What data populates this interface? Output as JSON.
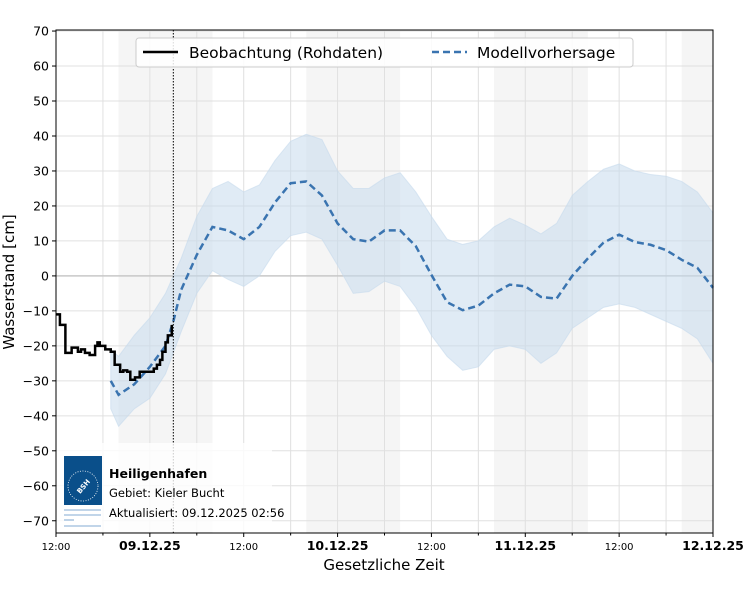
{
  "chart_data": {
    "type": "line",
    "xlabel": "Gesetzliche Zeit",
    "ylabel": "Wasserstand [cm]",
    "ylim": [
      -73.5,
      70.3
    ],
    "xlim_hours": [
      0,
      84
    ],
    "grid": true,
    "legend_position": "top",
    "y_ticks": [
      -70,
      -60,
      -50,
      -40,
      -30,
      -20,
      -10,
      0,
      10,
      20,
      30,
      40,
      50,
      60,
      70
    ],
    "x_ticks": [
      {
        "h": 0,
        "label": "12:00",
        "bold": false
      },
      {
        "h": 12,
        "label": "09.12.25",
        "bold": true
      },
      {
        "h": 24,
        "label": "12:00",
        "bold": false
      },
      {
        "h": 36,
        "label": "10.12.25",
        "bold": true
      },
      {
        "h": 48,
        "label": "12:00",
        "bold": false
      },
      {
        "h": 60,
        "label": "11.12.25",
        "bold": true
      },
      {
        "h": 72,
        "label": "12:00",
        "bold": false
      },
      {
        "h": 84,
        "label": "12.12.25",
        "bold": true
      }
    ],
    "night_bands_hours": [
      [
        8,
        20
      ],
      [
        32,
        44
      ],
      [
        56,
        68
      ],
      [
        80,
        84
      ]
    ],
    "now_marker_hour": 15,
    "series": [
      {
        "name": "Beobachtung (Rohdaten)",
        "color": "#000000",
        "style": "solid",
        "x": [
          0,
          0.5,
          1.2,
          1.6,
          2,
          2.4,
          2.8,
          3.2,
          3.7,
          4.3,
          5,
          5.3,
          5.6,
          6.3,
          7,
          7.5,
          8.2,
          8.6,
          9.1,
          9.5,
          10.1,
          10.7,
          11.3,
          12,
          12.5,
          12.9,
          13.3,
          13.6,
          14,
          14.3,
          14.8
        ],
        "y": [
          -11,
          -14,
          -22,
          -22,
          -20.5,
          -20.5,
          -21.7,
          -21,
          -22,
          -22.6,
          -20,
          -19,
          -20,
          -21,
          -21.7,
          -25.4,
          -27.4,
          -27,
          -27.4,
          -29.7,
          -29,
          -27.4,
          -27.4,
          -27.4,
          -26.5,
          -25.4,
          -24,
          -21.7,
          -19,
          -17,
          -14
        ]
      },
      {
        "name": "Modellvorhersage",
        "color": "#3a74b0",
        "style": "dashed",
        "band_color": "#c6dbed",
        "x": [
          7,
          8,
          10,
          12,
          14,
          15,
          16,
          18,
          20,
          22,
          24,
          26,
          28,
          30,
          32,
          34,
          36,
          38,
          40,
          42,
          44,
          46,
          48,
          50,
          52,
          54,
          56,
          58,
          60,
          62,
          64,
          66,
          68,
          70,
          72,
          74,
          76,
          78,
          80,
          82,
          84
        ],
        "y": [
          -30,
          -34,
          -31,
          -26,
          -20,
          -13,
          -4,
          6,
          14,
          13,
          10.5,
          14,
          21,
          26.5,
          27,
          23,
          15,
          10.5,
          9.8,
          13,
          13,
          8.5,
          0.3,
          -7.5,
          -9.8,
          -8.5,
          -5,
          -2.5,
          -3,
          -6,
          -6.5,
          0,
          5,
          9.5,
          11.8,
          9.7,
          8.9,
          7.4,
          4.6,
          2.3,
          -3.4
        ],
        "upper": [
          -21,
          -23,
          -17,
          -12,
          -5,
          0,
          5,
          17,
          25,
          27,
          24,
          26,
          33,
          38.5,
          40.5,
          39,
          30,
          25,
          25,
          28,
          29.5,
          24,
          17,
          10.5,
          9,
          10,
          14,
          16.5,
          14.5,
          12,
          15,
          23,
          27,
          30.5,
          32,
          30,
          29,
          28.5,
          27,
          24,
          18
        ],
        "lower": [
          -38,
          -43,
          -38,
          -35,
          -28,
          -22,
          -16,
          -5,
          1.5,
          -1,
          -3,
          0,
          7,
          11.5,
          12.5,
          10.5,
          3,
          -5,
          -4.5,
          -1.5,
          -3,
          -9,
          -17,
          -23,
          -27,
          -26,
          -21,
          -20,
          -21,
          -25,
          -22,
          -15,
          -12,
          -9,
          -8,
          -9,
          -11,
          -13,
          -15,
          -18,
          -25
        ]
      }
    ]
  },
  "legend": {
    "obs_label": "Beobachtung (Rohdaten)",
    "model_label": "Modellvorhersage"
  },
  "info": {
    "station": "Heiligenhafen",
    "area": "Gebiet: Kieler Bucht",
    "updated": "Aktualisiert: 09.12.2025 02:56",
    "logo_text": "BSH",
    "logo_caption": "BUNDESAMT FÜR SEESCHIFFFAHRT UND HYDROGRAPHIE"
  }
}
